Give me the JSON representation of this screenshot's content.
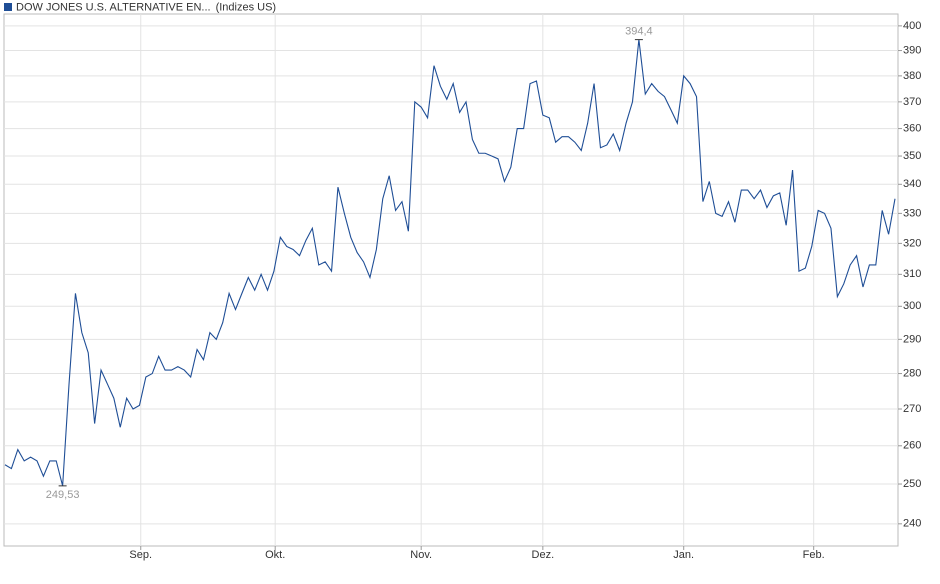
{
  "chart_data": {
    "type": "line",
    "subtitle": "(Indizes US)",
    "series": [
      {
        "name": "DOW JONES U.S. ALTERNATIVE EN...",
        "color": "#1f4e96",
        "values": [
          255,
          254,
          259,
          256,
          257,
          256,
          252,
          256,
          256,
          249.53,
          277,
          304,
          292,
          286,
          266,
          281,
          277,
          273,
          265,
          273,
          270,
          271,
          279,
          280,
          285,
          281,
          281,
          282,
          281,
          279,
          287,
          284,
          292,
          290,
          295,
          304,
          299,
          304,
          309,
          305,
          310,
          305,
          311,
          322,
          319,
          318,
          316,
          321,
          325,
          313,
          314,
          311,
          339,
          330,
          322,
          317,
          314,
          309,
          318,
          335,
          343,
          331,
          334,
          324,
          370,
          368,
          364,
          384,
          376,
          371,
          377,
          366,
          370,
          356,
          351,
          351,
          350,
          349,
          341,
          346,
          360,
          360,
          377,
          378,
          365,
          364,
          355,
          357,
          357,
          355,
          352,
          362,
          377,
          353,
          354,
          358,
          352,
          362,
          370,
          394.4,
          373,
          377,
          374,
          372,
          367,
          362,
          380,
          377,
          372,
          334,
          341,
          330,
          329,
          334,
          327,
          338,
          338,
          335,
          338,
          332,
          336,
          337,
          326,
          345,
          311,
          312,
          319,
          331,
          330,
          325,
          303,
          307,
          313,
          316,
          306,
          313,
          313,
          331,
          323,
          335
        ],
        "value_labels": {
          "9": "249,53",
          "99": "394,4"
        }
      }
    ],
    "xlim": [
      0,
      139
    ],
    "xticks": [
      {
        "value": 21.2,
        "label": "Sep."
      },
      {
        "value": 42.2,
        "label": "Okt."
      },
      {
        "value": 65,
        "label": "Nov."
      },
      {
        "value": 84,
        "label": "Dez."
      },
      {
        "value": 106,
        "label": "Jan."
      },
      {
        "value": 126.3,
        "label": "Feb."
      }
    ],
    "ylim": [
      234.6,
      404.9
    ],
    "yticks": [
      240,
      250,
      260,
      270,
      280,
      290,
      300,
      310,
      320,
      330,
      340,
      350,
      360,
      370,
      380,
      390,
      400
    ],
    "log_y": true,
    "grid": true
  }
}
